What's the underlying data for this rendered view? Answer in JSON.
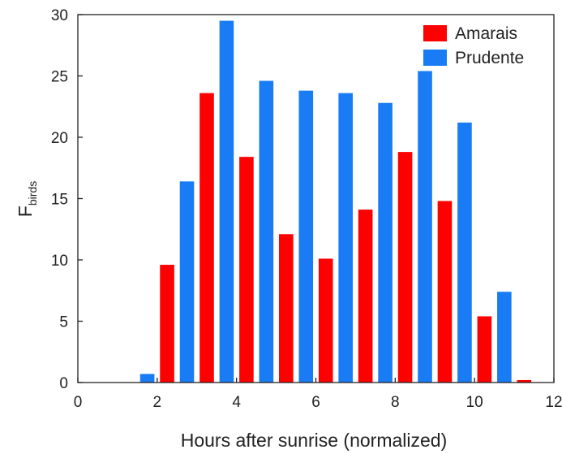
{
  "chart_data": {
    "type": "bar",
    "xlabel": "Hours after sunrise (normalized)",
    "ylabel_main": "F",
    "ylabel_sub": "birds",
    "xlim": [
      0,
      12
    ],
    "ylim": [
      0,
      30
    ],
    "xticks": [
      0,
      2,
      4,
      6,
      8,
      10,
      12
    ],
    "yticks": [
      0,
      5,
      10,
      15,
      20,
      25,
      30
    ],
    "grid": false,
    "legend_position": "top-right",
    "bar_width": 0.36,
    "series": [
      {
        "name": "Amarais",
        "color": "#ff0000",
        "x": [
          1.25,
          2.25,
          3.25,
          4.25,
          5.25,
          6.25,
          7.25,
          8.25,
          9.25,
          10.25,
          11.25
        ],
        "values": [
          0,
          9.6,
          23.6,
          18.4,
          12.1,
          10.1,
          14.1,
          18.8,
          14.8,
          5.4,
          0.2
        ]
      },
      {
        "name": "Prudente",
        "color": "#1a7cf5",
        "x": [
          1.75,
          2.75,
          3.75,
          4.75,
          5.75,
          6.75,
          7.75,
          8.75,
          9.75,
          10.75
        ],
        "values": [
          0.7,
          16.4,
          29.5,
          24.6,
          23.8,
          23.6,
          22.8,
          25.4,
          21.2,
          7.4
        ]
      }
    ]
  }
}
